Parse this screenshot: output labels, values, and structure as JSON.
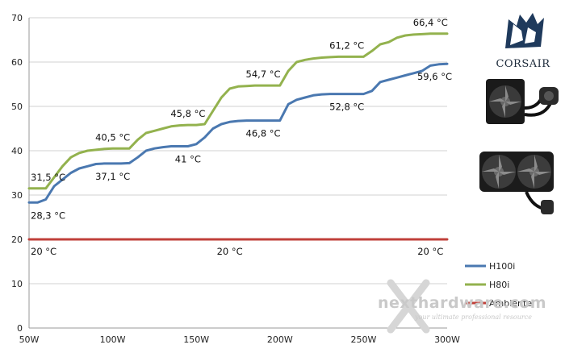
{
  "chart_data": {
    "type": "line",
    "x": [
      50,
      55,
      60,
      65,
      70,
      75,
      80,
      85,
      90,
      95,
      100,
      105,
      110,
      115,
      120,
      125,
      130,
      135,
      140,
      145,
      150,
      155,
      160,
      165,
      170,
      175,
      180,
      185,
      190,
      195,
      200,
      205,
      210,
      215,
      220,
      225,
      230,
      235,
      240,
      245,
      250,
      255,
      260,
      265,
      270,
      275,
      280,
      285,
      290,
      295,
      300
    ],
    "x_ticks": [
      50,
      100,
      150,
      200,
      250,
      300
    ],
    "x_tick_labels": [
      "50W",
      "100W",
      "150W",
      "200W",
      "250W",
      "300W"
    ],
    "ylim": [
      0,
      70
    ],
    "y_ticks": [
      0,
      10,
      20,
      30,
      40,
      50,
      60,
      70
    ],
    "grid": true,
    "legend_position": "right",
    "series": [
      {
        "name": "H100i",
        "color": "#4a78b0",
        "values": [
          28.3,
          28.3,
          29,
          32,
          33.5,
          35,
          36,
          36.5,
          37,
          37.1,
          37.1,
          37.1,
          37.2,
          38.5,
          40,
          40.5,
          40.8,
          41,
          41,
          41,
          41.5,
          43,
          45,
          46,
          46.5,
          46.7,
          46.8,
          46.8,
          46.8,
          46.8,
          46.8,
          50.5,
          51.5,
          52,
          52.5,
          52.7,
          52.8,
          52.8,
          52.8,
          52.8,
          52.8,
          53.5,
          55.5,
          56,
          56.5,
          57,
          57.5,
          58,
          59.2,
          59.5,
          59.6
        ]
      },
      {
        "name": "H80i",
        "color": "#93b24e",
        "values": [
          31.5,
          31.5,
          31.5,
          34,
          36.5,
          38.5,
          39.5,
          40,
          40.2,
          40.4,
          40.5,
          40.5,
          40.5,
          42.5,
          44,
          44.5,
          45,
          45.5,
          45.7,
          45.8,
          45.8,
          46,
          49,
          52,
          54,
          54.5,
          54.6,
          54.7,
          54.7,
          54.7,
          54.7,
          58,
          60,
          60.5,
          60.8,
          61,
          61.1,
          61.2,
          61.2,
          61.2,
          61.2,
          62.5,
          64,
          64.5,
          65.5,
          66,
          66.2,
          66.3,
          66.4,
          66.4,
          66.4
        ]
      },
      {
        "name": "Ambiente",
        "color": "#c0403a",
        "values": [
          20,
          20,
          20,
          20,
          20,
          20,
          20,
          20,
          20,
          20,
          20,
          20,
          20,
          20,
          20,
          20,
          20,
          20,
          20,
          20,
          20,
          20,
          20,
          20,
          20,
          20,
          20,
          20,
          20,
          20,
          20,
          20,
          20,
          20,
          20,
          20,
          20,
          20,
          20,
          20,
          20,
          20,
          20,
          20,
          20,
          20,
          20,
          20,
          20,
          20,
          20
        ]
      }
    ],
    "annotations": [
      {
        "text": "31,5 °C",
        "x": 50,
        "y": 31.5,
        "series": "H80i"
      },
      {
        "text": "40,5 °C",
        "x": 100,
        "y": 40.5,
        "series": "H80i"
      },
      {
        "text": "45,8 °C",
        "x": 145,
        "y": 45.8,
        "series": "H80i"
      },
      {
        "text": "54,7 °C",
        "x": 190,
        "y": 54.7,
        "series": "H80i"
      },
      {
        "text": "61,2 °C",
        "x": 240,
        "y": 61.2,
        "series": "H80i"
      },
      {
        "text": "66,4 °C",
        "x": 290,
        "y": 66.4,
        "series": "H80i"
      },
      {
        "text": "28,3 °C",
        "x": 50,
        "y": 28.3,
        "series": "H100i"
      },
      {
        "text": "37,1 °C",
        "x": 100,
        "y": 37.1,
        "series": "H100i"
      },
      {
        "text": "41 °C",
        "x": 145,
        "y": 41,
        "series": "H100i"
      },
      {
        "text": "46,8 °C",
        "x": 190,
        "y": 46.8,
        "series": "H100i"
      },
      {
        "text": "52,8 °C",
        "x": 240,
        "y": 52.8,
        "series": "H100i"
      },
      {
        "text": "59,6 °C",
        "x": 300,
        "y": 59.6,
        "series": "H100i"
      },
      {
        "text": "20 °C",
        "x": 50,
        "y": 20,
        "series": "Ambiente"
      },
      {
        "text": "20 °C",
        "x": 170,
        "y": 20,
        "series": "Ambiente"
      },
      {
        "text": "20 °C",
        "x": 290,
        "y": 20,
        "series": "Ambiente"
      }
    ]
  },
  "brand": {
    "name": "CORSAIR",
    "logo_icon": "sails-icon",
    "products": [
      "radiator-single-fan-icon",
      "radiator-dual-fan-icon"
    ]
  },
  "watermark": {
    "text": "nexthardware.com",
    "tagline": "your ultimate professional resource"
  }
}
